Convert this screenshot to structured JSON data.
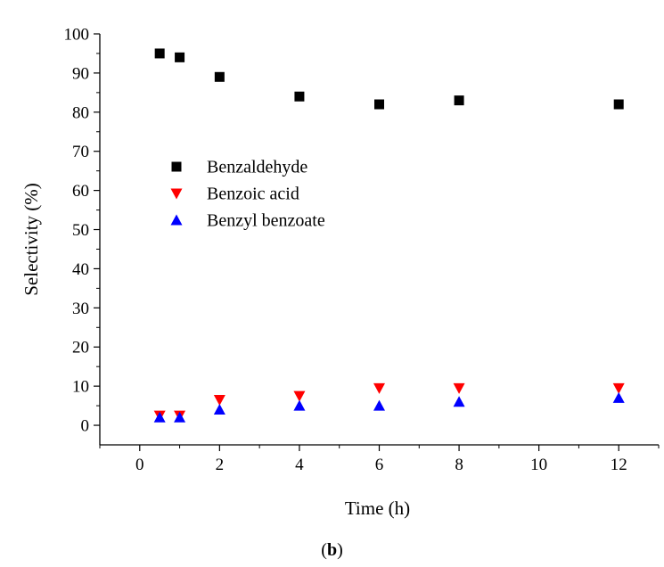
{
  "figure": {
    "panel_label_open": "(",
    "panel_label_letter": "b",
    "panel_label_close": ")"
  },
  "chart_data": {
    "type": "scatter",
    "xlabel": "Time (h)",
    "ylabel": "Selectivity (%)",
    "xlim": [
      -1,
      13
    ],
    "ylim": [
      -5,
      100
    ],
    "xticks": [
      0,
      2,
      4,
      6,
      8,
      10,
      12
    ],
    "yticks": [
      0,
      10,
      20,
      30,
      40,
      50,
      60,
      70,
      80,
      90,
      100
    ],
    "grid": false,
    "legend_position": "center-left",
    "series": [
      {
        "name": "Benzaldehyde",
        "marker": "square",
        "color": "#000000",
        "x": [
          0.5,
          1,
          2,
          4,
          6,
          8,
          12
        ],
        "y": [
          95,
          94,
          89,
          84,
          82,
          83,
          82
        ]
      },
      {
        "name": "Benzoic acid",
        "marker": "triangle-down",
        "color": "#ff0000",
        "x": [
          0.5,
          1,
          2,
          4,
          6,
          8,
          12
        ],
        "y": [
          2.5,
          2.5,
          6.5,
          7.5,
          9.5,
          9.5,
          9.5
        ]
      },
      {
        "name": "Benzyl benzoate",
        "marker": "triangle-up",
        "color": "#0000ff",
        "x": [
          0.5,
          1,
          2,
          4,
          6,
          8,
          12
        ],
        "y": [
          2,
          2,
          4,
          5,
          5,
          6,
          7
        ]
      }
    ]
  }
}
